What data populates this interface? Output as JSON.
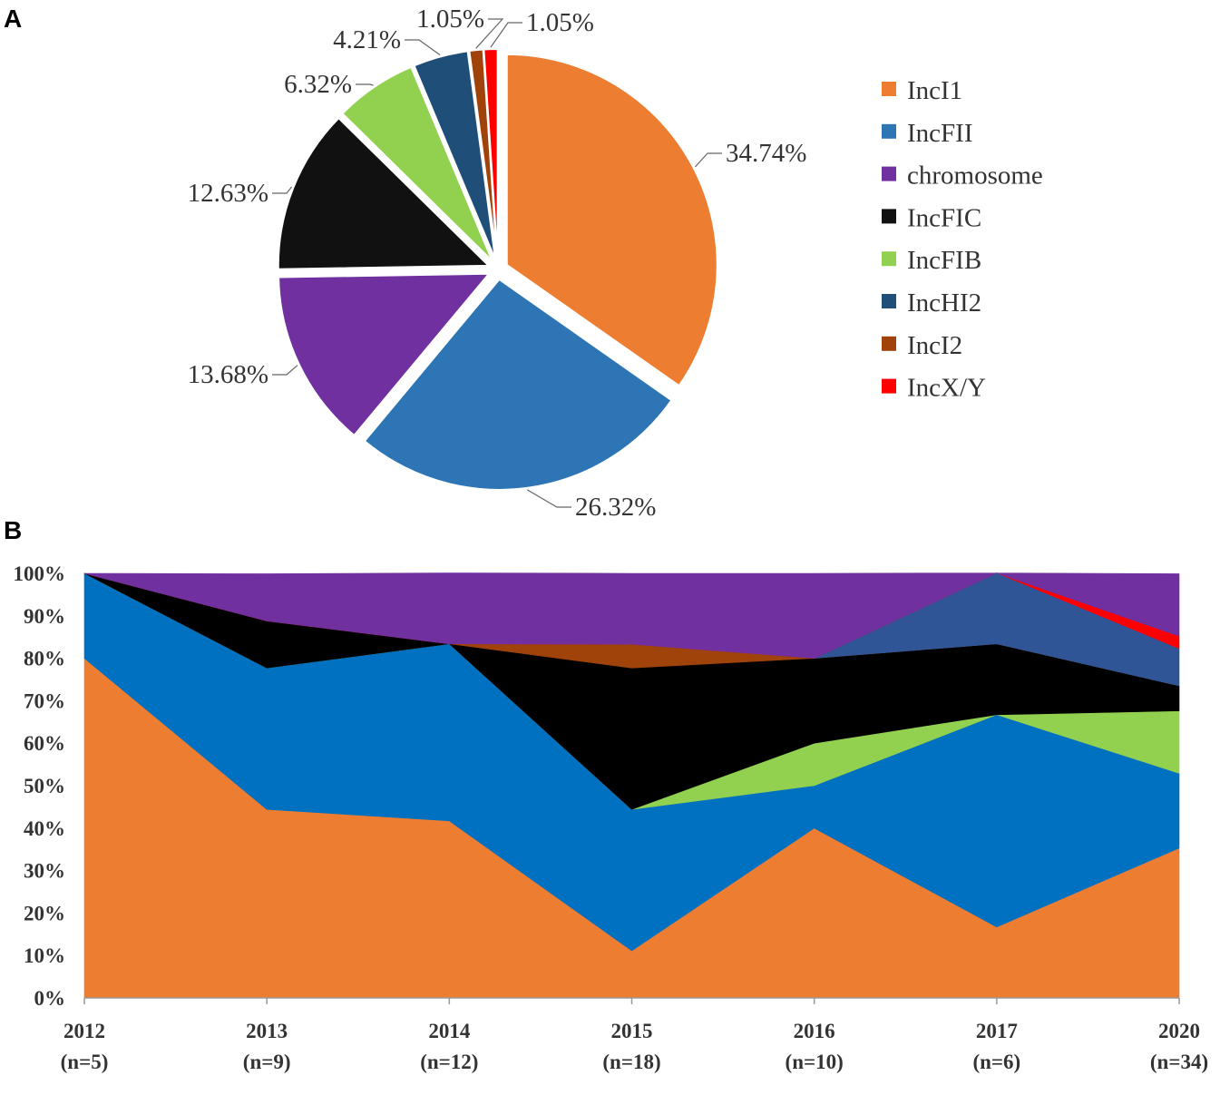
{
  "panels": {
    "a": "A",
    "b": "B"
  },
  "chart_data": [
    {
      "type": "pie",
      "panel": "A",
      "slices": [
        {
          "label": "IncI1",
          "value": 34.74,
          "value_label": "34.74%",
          "color": "#ED7D31"
        },
        {
          "label": "IncFII",
          "value": 26.32,
          "value_label": "26.32%",
          "color": "#2E75B6"
        },
        {
          "label": "chromosome",
          "value": 13.68,
          "value_label": "13.68%",
          "color": "#7030A0"
        },
        {
          "label": "IncFIC",
          "value": 12.63,
          "value_label": "12.63%",
          "color": "#111111"
        },
        {
          "label": "IncFIB",
          "value": 6.32,
          "value_label": "6.32%",
          "color": "#92D050"
        },
        {
          "label": "IncHI2",
          "value": 4.21,
          "value_label": "4.21%",
          "color": "#1F4E79"
        },
        {
          "label": "IncI2",
          "value": 1.05,
          "value_label": "1.05%",
          "color": "#A0430A"
        },
        {
          "label": "IncX/Y",
          "value": 1.05,
          "value_label": "1.05%",
          "color": "#FF0000"
        }
      ],
      "legend_position": "right"
    },
    {
      "type": "area",
      "panel": "B",
      "stacked": true,
      "categories": [
        "2012",
        "2013",
        "2014",
        "2015",
        "2016",
        "2017",
        "2020"
      ],
      "category_sublabels": [
        "(n=5)",
        "(n=9)",
        "(n=12)",
        "(n=18)",
        "(n=10)",
        "(n=6)",
        "(n=34)"
      ],
      "yticks": [
        "0%",
        "10%",
        "20%",
        "30%",
        "40%",
        "50%",
        "60%",
        "70%",
        "80%",
        "90%",
        "100%"
      ],
      "ylim": [
        0,
        100
      ],
      "series": [
        {
          "name": "IncI1",
          "color": "#ED7D31",
          "values": [
            80,
            44.4,
            41.7,
            11.1,
            40,
            16.7,
            35.3
          ]
        },
        {
          "name": "IncFII",
          "color": "#0070C0",
          "values": [
            20,
            33.3,
            41.7,
            33.3,
            10,
            50,
            17.6
          ]
        },
        {
          "name": "IncFIB",
          "color": "#92D050",
          "values": [
            0,
            0,
            0,
            0,
            10,
            0,
            14.7
          ]
        },
        {
          "name": "IncFIC",
          "color": "#000000",
          "values": [
            0,
            11.1,
            0,
            33.3,
            20,
            16.7,
            5.9
          ]
        },
        {
          "name": "IncI2",
          "color": "#A0430A",
          "values": [
            0,
            0,
            0,
            5.6,
            0,
            0,
            0
          ]
        },
        {
          "name": "IncHI2",
          "color": "#2F5597",
          "values": [
            0,
            0,
            0,
            0,
            0,
            16.7,
            8.8
          ]
        },
        {
          "name": "IncX/Y",
          "color": "#FF0000",
          "values": [
            0,
            0,
            0,
            0,
            0,
            0,
            2.9
          ]
        },
        {
          "name": "chromosome",
          "color": "#7030A0",
          "values": [
            0,
            11.1,
            16.7,
            16.7,
            20,
            0,
            14.7
          ]
        }
      ]
    }
  ]
}
